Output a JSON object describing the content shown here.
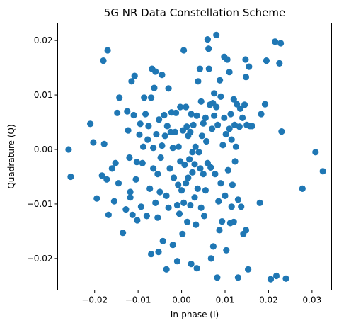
{
  "chart_data": {
    "type": "scatter",
    "title": "5G NR Data Constellation Scheme",
    "xlabel": "In-phase (I)",
    "ylabel": "Quadrature (Q)",
    "xlim": [
      -0.0285,
      0.0345
    ],
    "ylim": [
      -0.0258,
      0.0232
    ],
    "xticks": [
      -0.02,
      -0.01,
      0.0,
      0.01,
      0.02,
      0.03
    ],
    "xtick_labels": [
      "−0.02",
      "−0.01",
      "0.00",
      "0.01",
      "0.02",
      "0.03"
    ],
    "yticks": [
      -0.02,
      -0.01,
      0.0,
      0.01,
      0.02
    ],
    "ytick_labels": [
      "−0.02",
      "−0.01",
      "0.00",
      "0.01",
      "0.02"
    ],
    "grid": false,
    "marker_color": "#1f77b4",
    "series": [
      {
        "points": [
          [
            -0.026,
            0.0
          ],
          [
            -0.0255,
            -0.005
          ],
          [
            -0.021,
            0.0047
          ],
          [
            -0.0203,
            0.0013
          ],
          [
            -0.0195,
            -0.009
          ],
          [
            -0.018,
            0.0163
          ],
          [
            -0.017,
            0.0182
          ],
          [
            -0.0183,
            -0.0048
          ],
          [
            -0.0178,
            0.001
          ],
          [
            -0.0172,
            -0.0055
          ],
          [
            -0.0168,
            -0.012
          ],
          [
            -0.016,
            -0.0035
          ],
          [
            -0.0155,
            -0.0095
          ],
          [
            -0.0148,
            0.0067
          ],
          [
            -0.0145,
            -0.0062
          ],
          [
            -0.0143,
            0.0095
          ],
          [
            -0.0152,
            -0.0025
          ],
          [
            -0.0135,
            -0.0153
          ],
          [
            -0.0128,
            -0.011
          ],
          [
            -0.012,
            -0.0015
          ],
          [
            -0.0125,
            0.007
          ],
          [
            -0.0123,
            0.0035
          ],
          [
            -0.0118,
            -0.0088
          ],
          [
            -0.0115,
            0.0125
          ],
          [
            -0.0113,
            -0.012
          ],
          [
            -0.0118,
            -0.0078
          ],
          [
            -0.011,
            0.0063
          ],
          [
            -0.0108,
            0.0135
          ],
          [
            -0.0105,
            -0.0055
          ],
          [
            -0.0102,
            -0.013
          ],
          [
            -0.0103,
            -0.0023
          ],
          [
            -0.0097,
            0.0027
          ],
          [
            -0.0095,
            0.0047
          ],
          [
            -0.0093,
            -0.0105
          ],
          [
            -0.009,
            -0.0025
          ],
          [
            -0.0088,
            0.0005
          ],
          [
            -0.0086,
            0.0095
          ],
          [
            -0.0083,
            0.0065
          ],
          [
            -0.008,
            -0.0122
          ],
          [
            -0.0078,
            0.0018
          ],
          [
            -0.0076,
            0.0043
          ],
          [
            -0.0073,
            -0.0072
          ],
          [
            -0.007,
            -0.0192
          ],
          [
            -0.007,
            0.0095
          ],
          [
            -0.0068,
            0.0148
          ],
          [
            -0.0065,
            -0.0035
          ],
          [
            -0.0065,
            0.0003
          ],
          [
            -0.0063,
            0.0113
          ],
          [
            -0.006,
            -0.0098
          ],
          [
            -0.006,
            0.0143
          ],
          [
            -0.0058,
            0.0028
          ],
          [
            -0.0055,
            -0.0045
          ],
          [
            -0.0053,
            -0.0188
          ],
          [
            -0.0055,
            -0.0125
          ],
          [
            -0.0052,
            0.0055
          ],
          [
            -0.005,
            -0.0078
          ],
          [
            -0.0048,
            -0.0015
          ],
          [
            -0.0045,
            0.0137
          ],
          [
            -0.0045,
            0.0007
          ],
          [
            -0.0043,
            -0.0168
          ],
          [
            -0.004,
            0.0063
          ],
          [
            -0.0038,
            0.0025
          ],
          [
            -0.0035,
            -0.0085
          ],
          [
            -0.0035,
            -0.022
          ],
          [
            -0.0033,
            0.0043
          ],
          [
            -0.003,
            -0.0107
          ],
          [
            -0.003,
            0.0112
          ],
          [
            -0.0027,
            -0.0035
          ],
          [
            -0.0025,
            0.0032
          ],
          [
            -0.0023,
            0.0068
          ],
          [
            -0.002,
            -0.0175
          ],
          [
            -0.002,
            0.0003
          ],
          [
            -0.0018,
            -0.0052
          ],
          [
            -0.0015,
            0.0032
          ],
          [
            -0.0013,
            0.0067
          ],
          [
            -0.001,
            -0.0102
          ],
          [
            -0.001,
            -0.0205
          ],
          [
            -0.0008,
            -0.0065
          ],
          [
            -0.0007,
            0.0005
          ],
          [
            -0.0005,
            -0.0118
          ],
          [
            -0.0003,
            -0.0022
          ],
          [
            -0.0003,
            0.0078
          ],
          [
            0.0,
            -0.0075
          ],
          [
            0.0002,
            -0.0155
          ],
          [
            0.0003,
            0.0035
          ],
          [
            0.0005,
            0.0182
          ],
          [
            0.0005,
            -0.0098
          ],
          [
            0.0007,
            -0.0028
          ],
          [
            0.001,
            -0.0062
          ],
          [
            0.001,
            0.0078
          ],
          [
            0.0012,
            0.0042
          ],
          [
            0.0013,
            -0.0133
          ],
          [
            0.0015,
            0.0025
          ],
          [
            0.0015,
            -0.0052
          ],
          [
            0.0018,
            -0.0018
          ],
          [
            0.002,
            0.0032
          ],
          [
            0.002,
            -0.0102
          ],
          [
            0.0022,
            0.0065
          ],
          [
            0.0022,
            -0.021
          ],
          [
            0.0025,
            -0.0005
          ],
          [
            0.0025,
            -0.0042
          ],
          [
            0.0027,
            0.0045
          ],
          [
            0.003,
            -0.0088
          ],
          [
            0.003,
            -0.0027
          ],
          [
            0.0032,
            0.0005
          ],
          [
            0.0033,
            -0.0138
          ],
          [
            0.0035,
            0.0062
          ],
          [
            0.0035,
            -0.0218
          ],
          [
            0.0037,
            -0.0072
          ],
          [
            0.0038,
            0.0125
          ],
          [
            0.004,
            -0.0005
          ],
          [
            0.0042,
            0.0148
          ],
          [
            0.0043,
            -0.0035
          ],
          [
            0.0045,
            0.0088
          ],
          [
            0.0045,
            -0.0107
          ],
          [
            0.0047,
            0.0025
          ],
          [
            0.005,
            -0.0045
          ],
          [
            0.005,
            0.0048
          ],
          [
            0.0052,
            -0.0122
          ],
          [
            0.0055,
            -0.0075
          ],
          [
            0.0055,
            0.0058
          ],
          [
            0.0057,
            0.0015
          ],
          [
            0.006,
            0.0202
          ],
          [
            0.006,
            -0.0025
          ],
          [
            0.0062,
            0.0185
          ],
          [
            0.0063,
            0.0148
          ],
          [
            0.0065,
            0.0082
          ],
          [
            0.0067,
            -0.0033
          ],
          [
            0.0068,
            -0.02
          ],
          [
            0.007,
            0.0038
          ],
          [
            0.0072,
            0.0085
          ],
          [
            0.0073,
            -0.0178
          ],
          [
            0.0075,
            0.0062
          ],
          [
            0.0075,
            0.0103
          ],
          [
            0.0077,
            -0.0045
          ],
          [
            0.008,
            0.021
          ],
          [
            0.008,
            0.0078
          ],
          [
            0.0082,
            -0.0235
          ],
          [
            0.0083,
            0.0045
          ],
          [
            0.0085,
            -0.0095
          ],
          [
            0.0087,
            -0.0148
          ],
          [
            0.0088,
            0.0127
          ],
          [
            0.009,
            -0.0062
          ],
          [
            0.009,
            0.0097
          ],
          [
            0.0093,
            -0.0132
          ],
          [
            0.0095,
            0.0008
          ],
          [
            0.0098,
            0.017
          ],
          [
            0.0098,
            0.0058
          ],
          [
            0.01,
            -0.0085
          ],
          [
            0.0102,
            0.0028
          ],
          [
            0.0103,
            -0.0185
          ],
          [
            0.0105,
            0.0165
          ],
          [
            0.0107,
            -0.0038
          ],
          [
            0.011,
            0.0038
          ],
          [
            0.011,
            0.0142
          ],
          [
            0.0112,
            -0.0135
          ],
          [
            0.0113,
            0.0065
          ],
          [
            0.0115,
            -0.0105
          ],
          [
            0.0115,
            0.0018
          ],
          [
            0.0117,
            -0.0065
          ],
          [
            0.012,
            0.0092
          ],
          [
            0.012,
            -0.0133
          ],
          [
            0.0122,
            0.0045
          ],
          [
            0.0123,
            -0.0022
          ],
          [
            0.0125,
            0.0005
          ],
          [
            0.0127,
            0.0083
          ],
          [
            0.013,
            -0.0235
          ],
          [
            0.013,
            -0.0092
          ],
          [
            0.0133,
            0.0042
          ],
          [
            0.0135,
            0.0075
          ],
          [
            0.0137,
            -0.0105
          ],
          [
            0.014,
            0.0058
          ],
          [
            0.0142,
            -0.0155
          ],
          [
            0.0145,
            0.0082
          ],
          [
            0.0147,
            0.0165
          ],
          [
            0.0148,
            0.0133
          ],
          [
            0.0148,
            -0.0148
          ],
          [
            0.015,
            0.0045
          ],
          [
            0.0153,
            -0.022
          ],
          [
            0.0155,
            0.0152
          ],
          [
            0.0157,
            0.0043
          ],
          [
            0.0162,
            0.0043
          ],
          [
            0.018,
            -0.0098
          ],
          [
            0.0183,
            0.0065
          ],
          [
            0.0192,
            0.0083
          ],
          [
            0.0195,
            0.0163
          ],
          [
            0.0205,
            -0.0238
          ],
          [
            0.0215,
            0.0198
          ],
          [
            0.0218,
            -0.0232
          ],
          [
            0.0225,
            0.0158
          ],
          [
            0.0228,
            0.0195
          ],
          [
            0.023,
            0.0033
          ],
          [
            0.024,
            -0.0237
          ],
          [
            0.0278,
            -0.0072
          ],
          [
            0.0308,
            -0.0005
          ],
          [
            0.0325,
            -0.004
          ]
        ]
      }
    ]
  }
}
